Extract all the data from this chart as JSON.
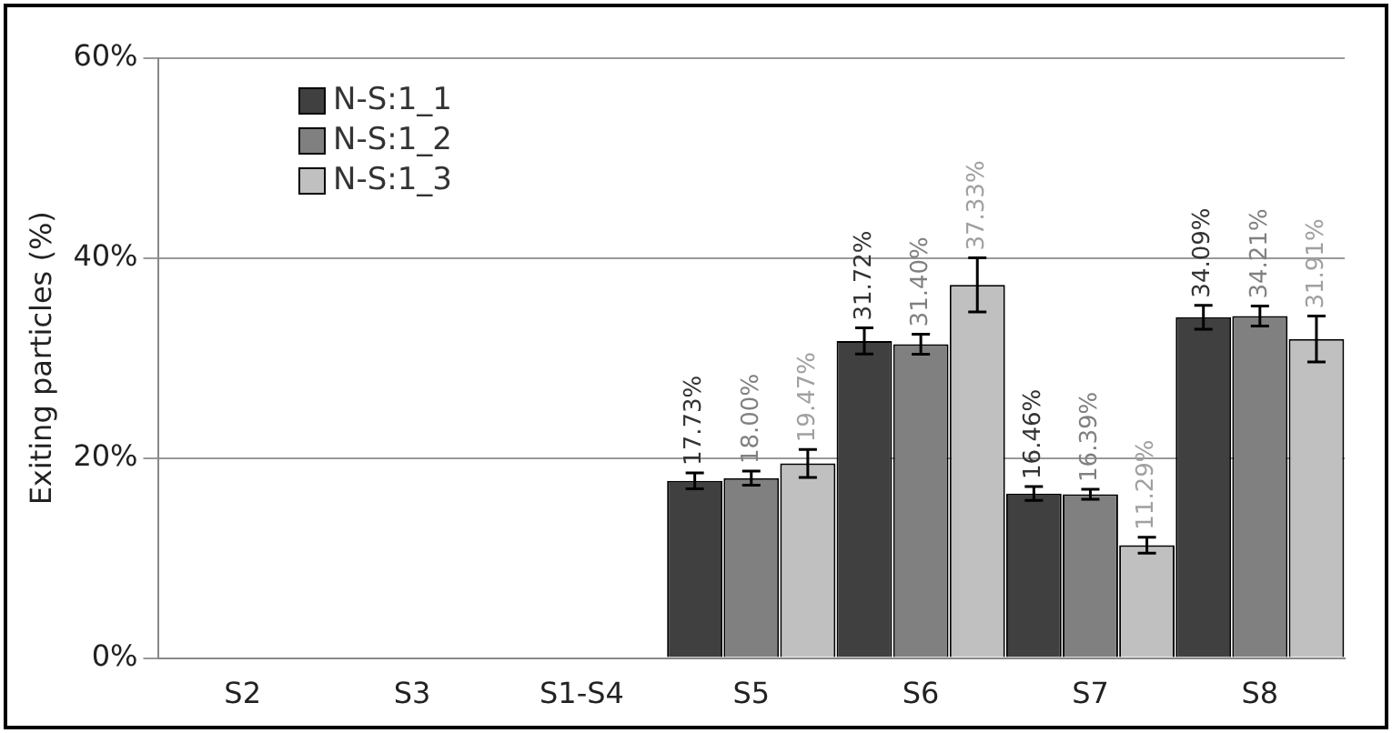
{
  "chart_data": {
    "type": "bar",
    "ylabel": "Exiting particles (%)",
    "categories": [
      "S2",
      "S3",
      "S1-S4",
      "S5",
      "S6",
      "S7",
      "S8"
    ],
    "series": [
      {
        "name": "N-S:1_1",
        "color": "#404040",
        "values": [
          null,
          null,
          null,
          17.73,
          31.72,
          16.46,
          34.09
        ],
        "errors": [
          null,
          null,
          null,
          0.8,
          1.3,
          0.7,
          1.2
        ],
        "value_labels": [
          null,
          null,
          null,
          "17.73%",
          "31.72%",
          "16.46%",
          "34.09%"
        ]
      },
      {
        "name": "N-S:1_2",
        "color": "#808080",
        "values": [
          null,
          null,
          null,
          18.0,
          31.4,
          16.39,
          34.21
        ],
        "errors": [
          null,
          null,
          null,
          0.7,
          1.0,
          0.5,
          1.0
        ],
        "value_labels": [
          null,
          null,
          null,
          "18.00%",
          "31.40%",
          "16.39%",
          "34.21%"
        ]
      },
      {
        "name": "N-S:1_3",
        "color": "#c0c0c0",
        "values": [
          null,
          null,
          null,
          19.47,
          37.33,
          11.29,
          31.91
        ],
        "errors": [
          null,
          null,
          null,
          1.4,
          2.7,
          0.8,
          2.3
        ],
        "value_labels": [
          null,
          null,
          null,
          "19.47%",
          "37.33%",
          "11.29%",
          "31.91%"
        ]
      }
    ],
    "ylim": [
      0,
      60
    ],
    "yticks": [
      {
        "value": 0,
        "label": "0%"
      },
      {
        "value": 20,
        "label": "20%"
      },
      {
        "value": 40,
        "label": "40%"
      },
      {
        "value": 60,
        "label": "60%"
      }
    ],
    "grid": "y",
    "legend": "top left"
  }
}
